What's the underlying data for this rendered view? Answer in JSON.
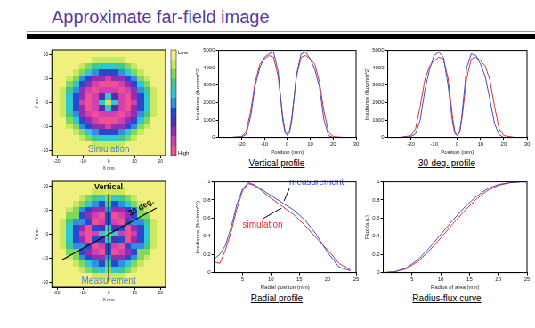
{
  "slide_title": "Approximate far-field image",
  "chart_data": [
    {
      "type": "heatmap",
      "caption": "Simulation",
      "x_label": "X mm",
      "y_label": "Y mm",
      "x": [
        -20,
        -17.5,
        -15,
        -12.5,
        -10,
        -7.5,
        -5,
        -2.5,
        0,
        2.5,
        5,
        7.5,
        10,
        12.5,
        15,
        17.5,
        20
      ],
      "y": [
        20,
        17.5,
        15,
        12.5,
        10,
        7.5,
        5,
        2.5,
        0,
        -2.5,
        -5,
        -7.5,
        -10,
        -12.5,
        -15,
        -17.5,
        -20
      ],
      "cells": [
        [
          0,
          0,
          0,
          0,
          0,
          0,
          0,
          0,
          0,
          0,
          0,
          0,
          0,
          0,
          0,
          0,
          0
        ],
        [
          0,
          0,
          0,
          0,
          0,
          0,
          1,
          1,
          1,
          1,
          1,
          0,
          0,
          0,
          0,
          0,
          0
        ],
        [
          0,
          0,
          0,
          0,
          1,
          2,
          3,
          4,
          4,
          4,
          3,
          2,
          1,
          0,
          0,
          0,
          0
        ],
        [
          0,
          0,
          0,
          1,
          2,
          4,
          5,
          6,
          6,
          6,
          5,
          4,
          2,
          1,
          0,
          0,
          0
        ],
        [
          0,
          0,
          1,
          2,
          5,
          6,
          8,
          8,
          9,
          8,
          8,
          6,
          5,
          2,
          1,
          0,
          0
        ],
        [
          0,
          0,
          2,
          4,
          6,
          8,
          9,
          10,
          10,
          10,
          9,
          8,
          6,
          4,
          2,
          0,
          0
        ],
        [
          0,
          1,
          3,
          5,
          8,
          9,
          10,
          9,
          9,
          9,
          10,
          9,
          8,
          5,
          3,
          1,
          0
        ],
        [
          0,
          1,
          4,
          6,
          8,
          10,
          9,
          7,
          4,
          7,
          9,
          10,
          8,
          6,
          4,
          1,
          0
        ],
        [
          0,
          1,
          4,
          6,
          9,
          10,
          9,
          4,
          1,
          4,
          9,
          10,
          9,
          6,
          4,
          1,
          0
        ],
        [
          0,
          1,
          4,
          6,
          8,
          10,
          9,
          7,
          4,
          7,
          9,
          10,
          8,
          6,
          4,
          1,
          0
        ],
        [
          0,
          1,
          3,
          5,
          8,
          9,
          10,
          9,
          9,
          9,
          10,
          9,
          8,
          5,
          3,
          1,
          0
        ],
        [
          0,
          0,
          2,
          4,
          6,
          8,
          9,
          10,
          10,
          10,
          9,
          8,
          6,
          4,
          2,
          0,
          0
        ],
        [
          0,
          0,
          1,
          2,
          5,
          6,
          8,
          8,
          9,
          8,
          8,
          6,
          5,
          2,
          1,
          0,
          0
        ],
        [
          0,
          0,
          0,
          1,
          2,
          4,
          5,
          6,
          6,
          6,
          5,
          4,
          2,
          1,
          0,
          0,
          0
        ],
        [
          0,
          0,
          0,
          0,
          1,
          2,
          3,
          4,
          4,
          4,
          3,
          2,
          1,
          0,
          0,
          0,
          0
        ],
        [
          0,
          0,
          0,
          0,
          0,
          0,
          1,
          1,
          1,
          1,
          1,
          0,
          0,
          0,
          0,
          0,
          0
        ],
        [
          0,
          0,
          0,
          0,
          0,
          0,
          0,
          0,
          0,
          0,
          0,
          0,
          0,
          0,
          0,
          0,
          0
        ]
      ],
      "xlim": [
        -22,
        22
      ],
      "xticks": [
        -20,
        -10,
        0,
        10,
        20
      ],
      "ylim": [
        -22,
        22
      ],
      "yticks": [
        -20,
        -10,
        0,
        10,
        20
      ],
      "grid": false,
      "colorbar": {
        "range": [
          0,
          10
        ],
        "ticks": [
          {
            "value": 0,
            "label": "Low"
          },
          {
            "value": 10,
            "label": "High"
          }
        ],
        "colors": [
          "#f0f080",
          "#c8e860",
          "#80d860",
          "#40c890",
          "#30c8d0",
          "#3090e0",
          "#2848d0",
          "#5030b0",
          "#9030b0",
          "#d040b0",
          "#f05090"
        ]
      }
    },
    {
      "type": "heatmap",
      "caption": "Measurement",
      "annotations": [
        "Vertical",
        "30 deg."
      ],
      "x_label": "X mm",
      "y_label": "Y mm",
      "x": [
        -20,
        -17.5,
        -15,
        -12.5,
        -10,
        -7.5,
        -5,
        -2.5,
        0,
        2.5,
        5,
        7.5,
        10,
        12.5,
        15,
        17.5,
        20
      ],
      "y": [
        20,
        17.5,
        15,
        12.5,
        10,
        7.5,
        5,
        2.5,
        0,
        -2.5,
        -5,
        -7.5,
        -10,
        -12.5,
        -15,
        -17.5,
        -20
      ],
      "cells": [
        [
          0,
          0,
          0,
          0,
          0,
          0,
          0,
          0,
          0,
          0,
          0,
          0,
          0,
          0,
          0,
          0,
          0
        ],
        [
          0,
          0,
          0,
          0,
          0,
          0,
          1,
          1,
          1,
          1,
          1,
          0,
          0,
          0,
          0,
          0,
          0
        ],
        [
          0,
          0,
          0,
          0,
          1,
          2,
          3,
          4,
          2,
          4,
          3,
          2,
          1,
          0,
          0,
          0,
          0
        ],
        [
          0,
          0,
          0,
          1,
          2,
          4,
          5,
          6,
          3,
          6,
          5,
          4,
          2,
          1,
          0,
          0,
          0
        ],
        [
          0,
          0,
          1,
          2,
          5,
          6,
          8,
          8,
          5,
          8,
          8,
          6,
          5,
          2,
          1,
          0,
          0
        ],
        [
          0,
          0,
          2,
          2,
          6,
          8,
          9,
          10,
          6,
          10,
          9,
          8,
          6,
          2,
          2,
          0,
          0
        ],
        [
          0,
          1,
          3,
          5,
          5,
          6,
          10,
          9,
          6,
          9,
          10,
          6,
          5,
          5,
          3,
          1,
          0
        ],
        [
          0,
          1,
          4,
          6,
          8,
          10,
          6,
          7,
          4,
          7,
          6,
          10,
          8,
          6,
          4,
          1,
          0
        ],
        [
          0,
          1,
          4,
          6,
          9,
          10,
          9,
          4,
          2,
          4,
          9,
          10,
          9,
          6,
          4,
          1,
          0
        ],
        [
          0,
          1,
          4,
          6,
          8,
          10,
          6,
          7,
          4,
          7,
          6,
          10,
          8,
          6,
          4,
          1,
          0
        ],
        [
          0,
          1,
          3,
          5,
          5,
          6,
          10,
          9,
          6,
          9,
          10,
          6,
          5,
          5,
          3,
          1,
          0
        ],
        [
          0,
          0,
          2,
          2,
          6,
          8,
          9,
          10,
          6,
          10,
          9,
          8,
          6,
          2,
          2,
          0,
          0
        ],
        [
          0,
          0,
          1,
          2,
          5,
          6,
          8,
          8,
          5,
          8,
          8,
          6,
          5,
          2,
          1,
          0,
          0
        ],
        [
          0,
          0,
          0,
          1,
          2,
          4,
          5,
          6,
          3,
          6,
          5,
          4,
          2,
          1,
          0,
          0,
          0
        ],
        [
          0,
          0,
          0,
          0,
          1,
          2,
          3,
          4,
          2,
          4,
          3,
          2,
          1,
          0,
          0,
          0,
          0
        ],
        [
          0,
          0,
          0,
          0,
          0,
          0,
          1,
          1,
          1,
          1,
          1,
          0,
          0,
          0,
          0,
          0,
          0
        ],
        [
          0,
          0,
          0,
          0,
          0,
          0,
          0,
          0,
          0,
          0,
          0,
          0,
          0,
          0,
          0,
          0,
          0
        ]
      ],
      "xlim": [
        -22,
        22
      ],
      "xticks": [
        -20,
        -10,
        0,
        10,
        20
      ],
      "ylim": [
        -22,
        22
      ],
      "yticks": [
        -20,
        -10,
        0,
        10,
        20
      ],
      "grid": false
    },
    {
      "type": "line",
      "title": "Vertical profile",
      "x_label": "Position (mm)",
      "y_label": "Irradiance (flux/mm^2)",
      "x": [
        -25,
        -20,
        -18,
        -16,
        -14,
        -12,
        -10,
        -8,
        -6,
        -4,
        -2,
        -1,
        0,
        1,
        2,
        4,
        6,
        8,
        10,
        12,
        14,
        16,
        18,
        20,
        25
      ],
      "series": [
        {
          "color": "#3a4fd0",
          "values": [
            0,
            30,
            150,
            1200,
            3000,
            4000,
            4600,
            4800,
            4900,
            3800,
            1000,
            300,
            100,
            300,
            1000,
            3600,
            4800,
            4900,
            4500,
            3900,
            2900,
            1000,
            100,
            0,
            0
          ]
        },
        {
          "color": "#e03030",
          "values": [
            0,
            50,
            300,
            1500,
            3200,
            4200,
            4500,
            4700,
            4600,
            3500,
            1200,
            400,
            200,
            400,
            1200,
            3500,
            4600,
            4700,
            4500,
            4200,
            3200,
            1500,
            300,
            50,
            0
          ]
        }
      ],
      "xlim": [
        -30,
        30
      ],
      "xticks": [
        -20,
        -10,
        0,
        10,
        20,
        30
      ],
      "ylim": [
        0,
        5000
      ],
      "yticks": [
        0,
        1000,
        2000,
        3000,
        4000,
        5000
      ],
      "grid": false
    },
    {
      "type": "line",
      "title": "30-deg. profile",
      "x_label": "Position (mm)",
      "y_label": "Irradiance (flux/mm^2)",
      "x": [
        -25,
        -20,
        -18,
        -16,
        -14,
        -12,
        -10,
        -8,
        -6,
        -4,
        -2,
        -1,
        0,
        1,
        2,
        4,
        6,
        8,
        10,
        12,
        14,
        16,
        18,
        20,
        25
      ],
      "series": [
        {
          "color": "#3a4fd0",
          "values": [
            0,
            50,
            200,
            1000,
            2700,
            3900,
            4700,
            4900,
            4600,
            3000,
            800,
            200,
            100,
            300,
            1300,
            4000,
            4800,
            4700,
            4200,
            3500,
            2200,
            800,
            150,
            0,
            0
          ]
        },
        {
          "color": "#e03030",
          "values": [
            0,
            100,
            500,
            1800,
            3300,
            4100,
            4400,
            4600,
            4500,
            3400,
            1100,
            300,
            100,
            300,
            1100,
            3400,
            4500,
            4600,
            4400,
            4100,
            3300,
            1800,
            500,
            100,
            0
          ]
        }
      ],
      "xlim": [
        -30,
        30
      ],
      "xticks": [
        -20,
        -10,
        0,
        10,
        20,
        30
      ],
      "ylim": [
        0,
        5000
      ],
      "yticks": [
        0,
        1000,
        2000,
        3000,
        4000,
        5000
      ],
      "grid": false
    },
    {
      "type": "line",
      "title": "Radial profile",
      "x_label": "Radial position (mm)",
      "y_label": "Irradiance (flux/mm^2)",
      "x": [
        0,
        1,
        2,
        3,
        4,
        5,
        6,
        7,
        8,
        10,
        12,
        14,
        16,
        18,
        20,
        22,
        24
      ],
      "series": [
        {
          "name": "measurement",
          "color": "#3a4fd0",
          "values": [
            0.15,
            0.2,
            0.3,
            0.5,
            0.75,
            0.92,
            0.99,
            0.97,
            0.93,
            0.85,
            0.77,
            0.69,
            0.58,
            0.42,
            0.22,
            0.06,
            0.02
          ]
        },
        {
          "name": "simulation",
          "color": "#e03030",
          "values": [
            0.12,
            0.1,
            0.25,
            0.45,
            0.7,
            0.9,
            0.98,
            0.96,
            0.92,
            0.82,
            0.73,
            0.64,
            0.52,
            0.38,
            0.25,
            0.1,
            0.03
          ]
        }
      ],
      "xlim": [
        0,
        25
      ],
      "xticks": [
        5,
        10,
        15,
        20,
        25
      ],
      "ylim": [
        0,
        1
      ],
      "yticks": [
        0,
        0.2,
        0.4,
        0.6,
        0.8,
        1
      ],
      "grid": false
    },
    {
      "type": "line",
      "title": "Radius-flux curve",
      "x_label": "Radius of area (mm)",
      "y_label": "Flux (a.u.)",
      "x": [
        0,
        2,
        4,
        6,
        8,
        10,
        12,
        14,
        16,
        18,
        20,
        22,
        24,
        25
      ],
      "series": [
        {
          "color": "#3a4fd0",
          "values": [
            0,
            0.01,
            0.05,
            0.14,
            0.27,
            0.42,
            0.57,
            0.71,
            0.83,
            0.92,
            0.97,
            0.99,
            1.0,
            1.0
          ]
        },
        {
          "color": "#e03030",
          "values": [
            0,
            0.01,
            0.04,
            0.12,
            0.24,
            0.38,
            0.53,
            0.67,
            0.8,
            0.9,
            0.96,
            0.99,
            1.0,
            1.0
          ]
        }
      ],
      "xlim": [
        0,
        25
      ],
      "xticks": [
        5,
        10,
        15,
        20,
        25
      ],
      "ylim": [
        0,
        1
      ],
      "yticks": [
        0,
        0.2,
        0.4,
        0.6,
        0.8,
        1
      ],
      "grid": false
    }
  ]
}
